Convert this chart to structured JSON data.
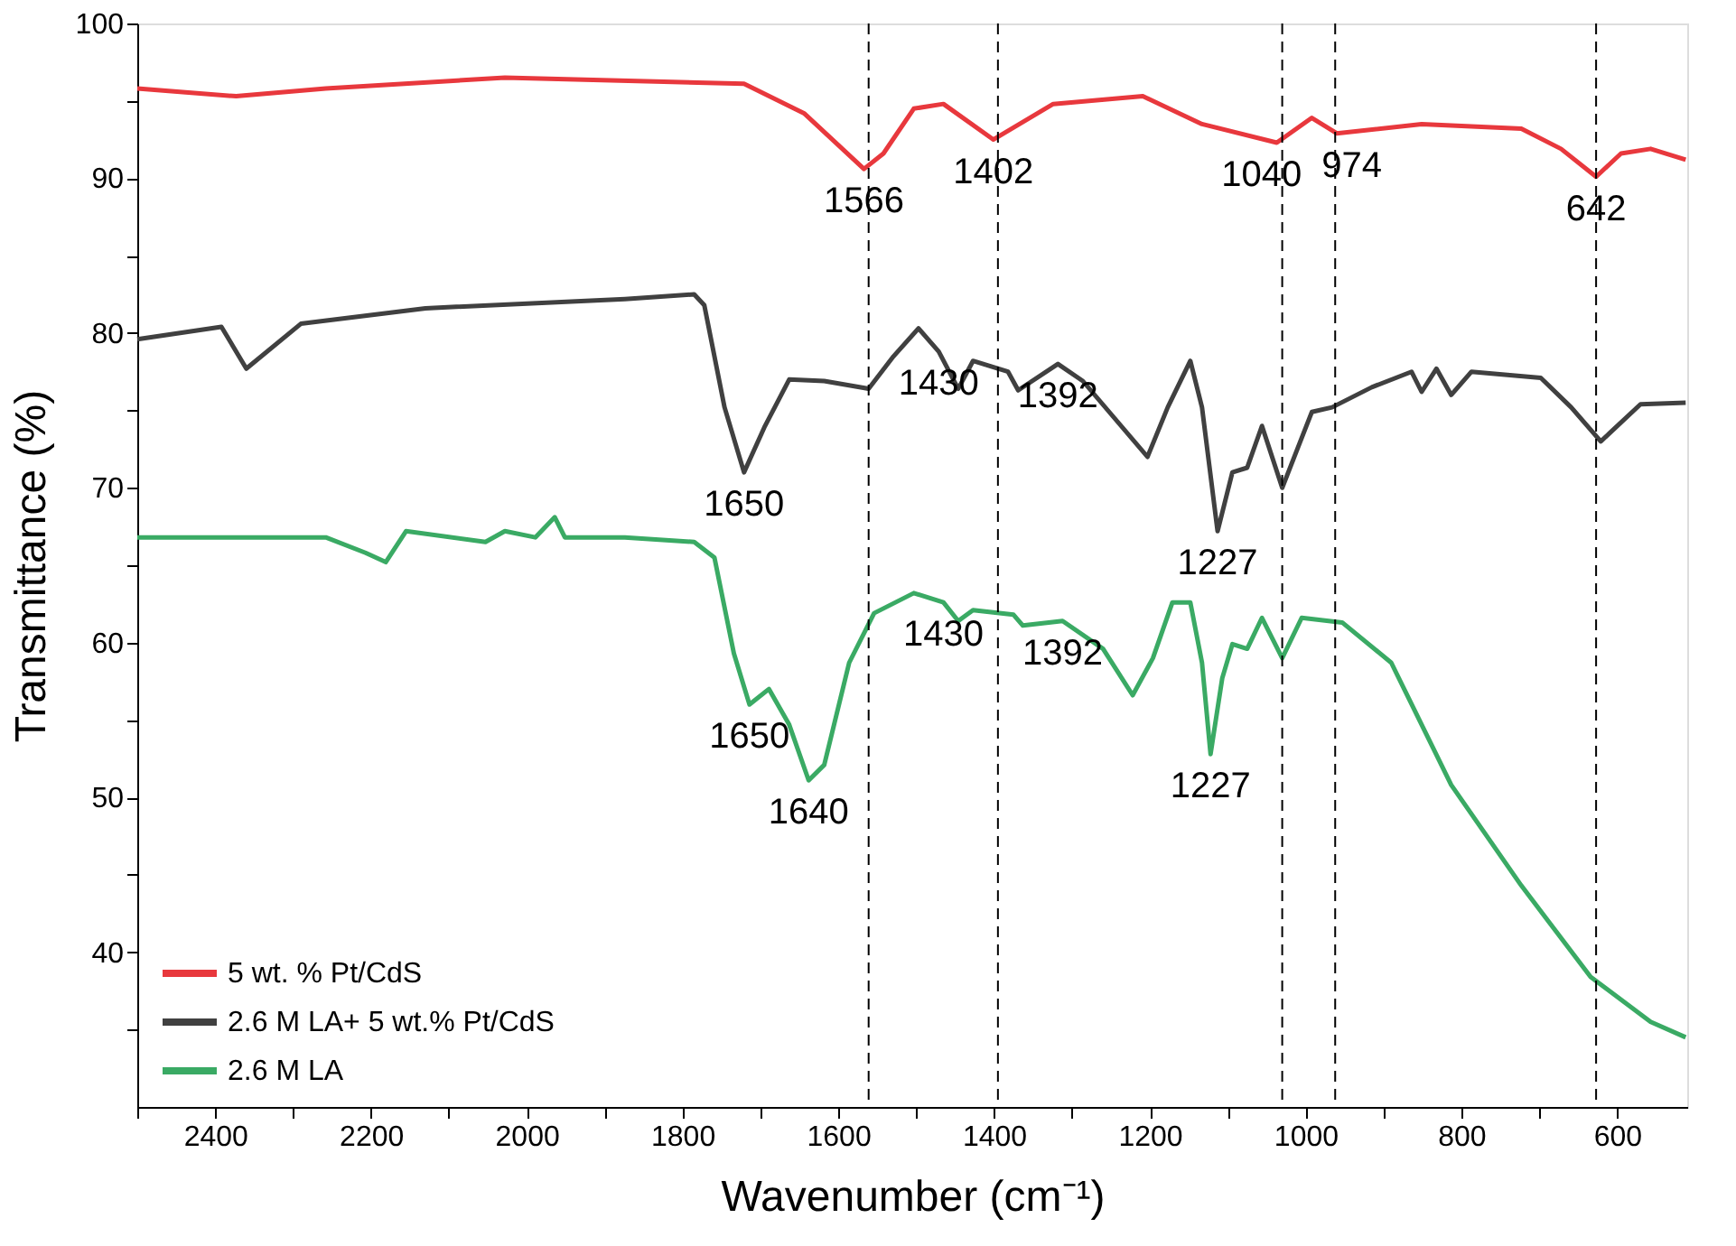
{
  "chart_data": {
    "type": "line",
    "xlabel": "Wavenumber (cm⁻¹)",
    "ylabel": "Transmittance (%)",
    "xlim": [
      2500,
      510
    ],
    "ylim": [
      30,
      100
    ],
    "xticks": [
      {
        "value": 2500,
        "label": null
      },
      2400,
      {
        "value": 2300,
        "label": null
      },
      2200,
      {
        "value": 2100,
        "label": null
      },
      2000,
      {
        "value": 1900,
        "label": null
      },
      1800,
      {
        "value": 1700,
        "label": null
      },
      1600,
      {
        "value": 1500,
        "label": null
      },
      1400,
      {
        "value": 1300,
        "label": null
      },
      1200,
      {
        "value": 1100,
        "label": null
      },
      1000,
      {
        "value": 900,
        "label": null
      },
      800,
      {
        "value": 700,
        "label": null
      },
      600
    ],
    "yticks": [
      {
        "value": 35,
        "label": null
      },
      40,
      {
        "value": 45,
        "label": null
      },
      50,
      {
        "value": 55,
        "label": null
      },
      60,
      {
        "value": 65,
        "label": null
      },
      70,
      {
        "value": 75,
        "label": null
      },
      80,
      {
        "value": 85,
        "label": null
      },
      90,
      {
        "value": 95,
        "label": null
      },
      100
    ],
    "grid": false,
    "legend": "bottom left",
    "marker": "none",
    "line_style": "solid",
    "series": [
      {
        "name": "5 wt. % Pt/CdS",
        "color": "#e8383d",
        "x": [
          2500,
          2373,
          2258,
          2028,
          1721,
          1644,
          1567,
          1542,
          1503,
          1465,
          1401,
          1324,
          1209,
          1133,
          1037,
          992,
          960,
          851,
          723,
          672,
          627,
          595,
          557,
          512
        ],
        "values": [
          95.8,
          95.3,
          95.8,
          96.5,
          96.1,
          94.2,
          90.6,
          91.6,
          94.5,
          94.8,
          92.5,
          94.8,
          95.3,
          93.5,
          92.3,
          93.9,
          92.9,
          93.5,
          93.2,
          91.9,
          90.1,
          91.6,
          91.9,
          91.2
        ]
      },
      {
        "name": "2.6 M LA+ 5 wt.% Pt/CdS",
        "color": "#404040",
        "x": [
          2500,
          2392,
          2360,
          2290,
          2130,
          1874,
          1785,
          1772,
          1746,
          1721,
          1695,
          1663,
          1618,
          1561,
          1529,
          1497,
          1471,
          1446,
          1427,
          1382,
          1369,
          1318,
          1286,
          1203,
          1177,
          1148,
          1133,
          1113,
          1094,
          1075,
          1056,
          1030,
          992,
          966,
          915,
          864,
          851,
          832,
          813,
          787,
          698,
          659,
          621,
          570,
          512
        ],
        "values": [
          79.6,
          80.4,
          77.7,
          80.6,
          81.6,
          82.2,
          82.5,
          81.8,
          75.2,
          71.0,
          73.9,
          77.0,
          76.9,
          76.4,
          78.5,
          80.3,
          78.8,
          76.4,
          78.2,
          77.5,
          76.3,
          78.0,
          76.9,
          72.0,
          75.2,
          78.2,
          75.2,
          67.2,
          71.0,
          71.3,
          74.0,
          70.0,
          74.9,
          75.2,
          76.5,
          77.5,
          76.2,
          77.7,
          76.0,
          77.5,
          77.1,
          75.2,
          73.0,
          75.4,
          75.5
        ]
      },
      {
        "name": "2.6 M LA",
        "color": "#3aaa64",
        "x": [
          2500,
          2258,
          2207,
          2181,
          2155,
          2053,
          2028,
          1989,
          1964,
          1951,
          1874,
          1785,
          1759,
          1734,
          1714,
          1689,
          1663,
          1638,
          1618,
          1586,
          1554,
          1503,
          1465,
          1446,
          1427,
          1375,
          1363,
          1312,
          1260,
          1222,
          1196,
          1171,
          1148,
          1133,
          1122,
          1107,
          1094,
          1075,
          1056,
          1030,
          1005,
          953,
          890,
          813,
          723,
          634,
          557,
          512
        ],
        "values": [
          66.8,
          66.8,
          65.8,
          65.2,
          67.2,
          66.5,
          67.2,
          66.8,
          68.1,
          66.8,
          66.8,
          66.5,
          65.5,
          59.3,
          56.0,
          57.0,
          54.7,
          51.1,
          52.1,
          58.7,
          61.9,
          63.2,
          62.6,
          61.4,
          62.1,
          61.8,
          61.1,
          61.4,
          59.6,
          56.6,
          59.0,
          62.6,
          62.6,
          58.7,
          52.8,
          57.7,
          59.9,
          59.6,
          61.6,
          59.0,
          61.6,
          61.3,
          58.7,
          50.8,
          44.3,
          38.4,
          35.5,
          34.5
        ]
      }
    ],
    "ref_lines": [
      {
        "axis": "x",
        "value": 1561,
        "label": null,
        "color": "#000000",
        "line_style": "dashed"
      },
      {
        "axis": "x",
        "value": 1395,
        "label": null,
        "color": "#000000",
        "line_style": "dashed"
      },
      {
        "axis": "x",
        "value": 1030,
        "label": null,
        "color": "#000000",
        "line_style": "dashed"
      },
      {
        "axis": "x",
        "value": 962,
        "label": null,
        "color": "#000000",
        "line_style": "dashed"
      },
      {
        "axis": "x",
        "value": 627,
        "label": null,
        "color": "#000000",
        "line_style": "dashed"
      }
    ],
    "annotations": [
      {
        "text": "1566",
        "x": 1567,
        "y": 90.6
      },
      {
        "text": "1402",
        "x": 1401,
        "y": 92.5
      },
      {
        "text": "1040",
        "x": 1037,
        "y": 92.3
      },
      {
        "text": "974",
        "x": 960,
        "y": 92.9
      },
      {
        "text": "642",
        "x": 627,
        "y": 90.1
      },
      {
        "text": "1650",
        "x": 1721,
        "y": 71.0
      },
      {
        "text": "1430",
        "x": 1471,
        "y": 78.8
      },
      {
        "text": "1392",
        "x": 1318,
        "y": 78.0
      },
      {
        "text": "1227",
        "x": 1113,
        "y": 67.2
      },
      {
        "text": "1650",
        "x": 1714,
        "y": 56.0
      },
      {
        "text": "1640",
        "x": 1638,
        "y": 51.1
      },
      {
        "text": "1430",
        "x": 1465,
        "y": 62.6
      },
      {
        "text": "1392",
        "x": 1312,
        "y": 61.4
      },
      {
        "text": "1227",
        "x": 1122,
        "y": 52.8
      }
    ]
  }
}
